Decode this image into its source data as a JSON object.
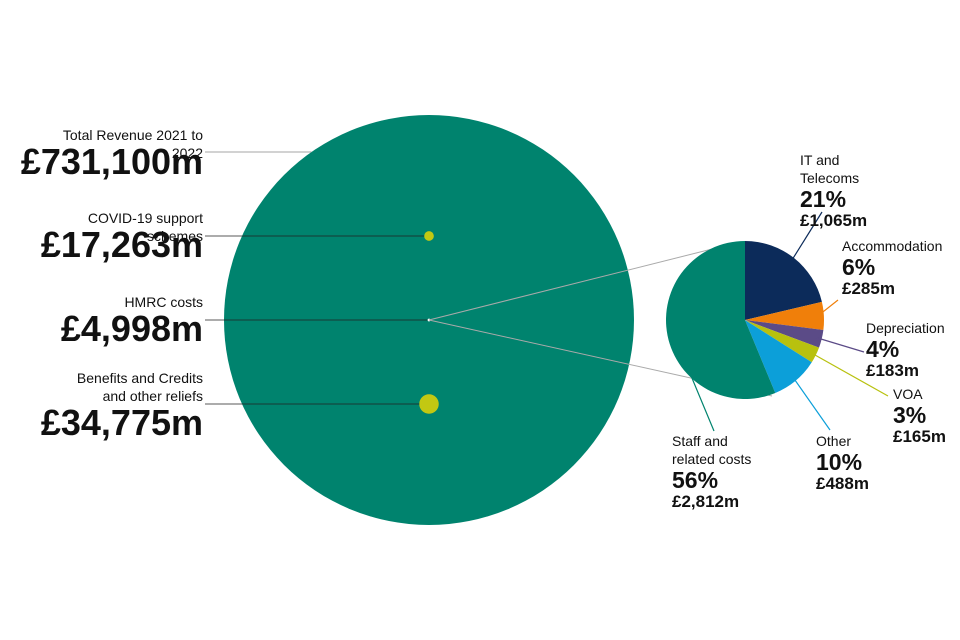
{
  "chart_data": [
    {
      "type": "bubble",
      "categories": [
        "Total Revenue 2021 to 2022",
        "COVID-19 support schemes",
        "HMRC costs",
        "Benefits and Credits and other reliefs"
      ],
      "values": [
        731100,
        17263,
        4998,
        34775
      ],
      "value_labels": [
        "£731,100m",
        "£17,263m",
        "£4,998m",
        "£34,775m"
      ],
      "colors": [
        "#00836e",
        "#c2c812",
        "#ffffff",
        "#c2c812"
      ]
    },
    {
      "type": "pie",
      "categories": [
        "IT and Telecoms",
        "Accommodation",
        "Depreciation",
        "VOA",
        "Other",
        "Staff and related costs"
      ],
      "values": [
        21,
        6,
        4,
        3,
        10,
        56
      ],
      "value_labels": [
        "21%",
        "6%",
        "4%",
        "3%",
        "10%",
        "56%"
      ],
      "amounts": [
        1065,
        285,
        183,
        165,
        488,
        2812
      ],
      "amount_labels": [
        "£1,065m",
        "£285m",
        "£183m",
        "£165m",
        "£488m",
        "£2,812m"
      ],
      "colors": [
        "#0c2b5a",
        "#f07f0a",
        "#5b4b87",
        "#b8c10e",
        "#0c9fd9",
        "#00836e"
      ]
    }
  ]
}
